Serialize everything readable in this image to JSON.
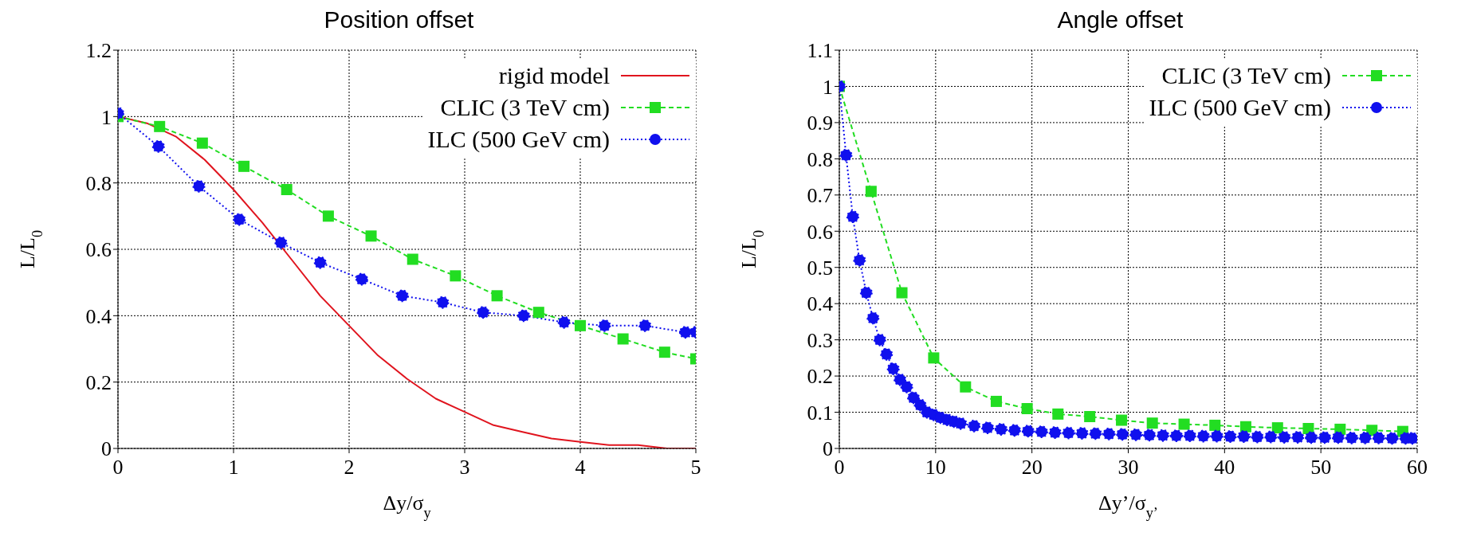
{
  "chart_data": [
    {
      "type": "line",
      "title": "Position offset",
      "xlabel": "Δy/σ$_{y}$",
      "ylabel": "L/L$_{0}$",
      "xlim": [
        0,
        5
      ],
      "xticks": [
        0,
        1,
        2,
        3,
        4,
        5
      ],
      "ylim": [
        0,
        1.2
      ],
      "yticks": [
        0,
        0.2,
        0.4,
        0.6,
        0.8,
        1,
        1.2
      ],
      "grid": true,
      "legend": "top right",
      "series": [
        {
          "name": "rigid model",
          "color": "#e0141e",
          "marker": "none",
          "line_style": "solid",
          "x": [
            0,
            0.25,
            0.5,
            0.75,
            1,
            1.25,
            1.5,
            1.75,
            2,
            2.25,
            2.5,
            2.75,
            3,
            3.25,
            3.5,
            3.75,
            4,
            4.25,
            4.5,
            4.75,
            5
          ],
          "values": [
            1,
            0.98,
            0.94,
            0.87,
            0.78,
            0.68,
            0.57,
            0.46,
            0.37,
            0.28,
            0.21,
            0.15,
            0.11,
            0.07,
            0.05,
            0.03,
            0.02,
            0.01,
            0.01,
            0,
            0
          ]
        },
        {
          "name": "CLIC (3 TeV cm)",
          "color": "#22dd22",
          "marker": "square",
          "line_style": "dashed",
          "x": [
            0,
            0.36,
            0.73,
            1.09,
            1.46,
            1.82,
            2.19,
            2.55,
            2.92,
            3.28,
            3.64,
            4.0,
            4.37,
            4.73,
            5
          ],
          "values": [
            1.0,
            0.97,
            0.92,
            0.85,
            0.78,
            0.7,
            0.64,
            0.57,
            0.52,
            0.46,
            0.41,
            0.37,
            0.33,
            0.29,
            0.27
          ]
        },
        {
          "name": "ILC (500 GeV cm)",
          "color": "#1010ee",
          "marker": "circle",
          "line_style": "dotted",
          "x": [
            0,
            0.35,
            0.7,
            1.05,
            1.41,
            1.75,
            2.11,
            2.46,
            2.81,
            3.16,
            3.51,
            3.86,
            4.21,
            4.56,
            4.91,
            5
          ],
          "values": [
            1.01,
            0.91,
            0.79,
            0.69,
            0.62,
            0.56,
            0.51,
            0.46,
            0.44,
            0.41,
            0.4,
            0.38,
            0.37,
            0.37,
            0.35,
            0.35
          ]
        }
      ]
    },
    {
      "type": "line",
      "title": "Angle offset",
      "xlabel": "Δy’/σ$_{y’}$",
      "ylabel": "L/L$_{0}$",
      "xlim": [
        0,
        60
      ],
      "xticks": [
        0,
        10,
        20,
        30,
        40,
        50,
        60
      ],
      "ylim": [
        0,
        1.1
      ],
      "yticks": [
        0,
        0.1,
        0.2,
        0.3,
        0.4,
        0.5,
        0.6,
        0.7,
        0.8,
        0.9,
        1,
        1.1
      ],
      "grid": true,
      "legend": "top right",
      "series": [
        {
          "name": "CLIC (3 TeV cm)",
          "color": "#22dd22",
          "marker": "square",
          "line_style": "dashed",
          "x": [
            0,
            3.3,
            6.5,
            9.8,
            13.1,
            16.3,
            19.5,
            22.7,
            26,
            29.3,
            32.5,
            35.8,
            39,
            42.2,
            45.5,
            48.7,
            52,
            55.3,
            58.5
          ],
          "values": [
            1.0,
            0.71,
            0.43,
            0.25,
            0.17,
            0.13,
            0.11,
            0.095,
            0.088,
            0.078,
            0.07,
            0.067,
            0.064,
            0.06,
            0.057,
            0.055,
            0.053,
            0.05,
            0.047
          ]
        },
        {
          "name": "ILC (500 GeV cm)",
          "color": "#1010ee",
          "marker": "circle",
          "line_style": "dotted",
          "x": [
            0,
            0.7,
            1.4,
            2.1,
            2.8,
            3.5,
            4.2,
            4.9,
            5.6,
            6.3,
            7,
            7.7,
            8.4,
            9.1,
            9.8,
            10.5,
            11.2,
            11.9,
            12.6,
            14,
            15.4,
            16.8,
            18.2,
            19.6,
            21,
            22.4,
            23.8,
            25.2,
            26.6,
            28,
            29.4,
            30.8,
            32.2,
            33.6,
            35,
            36.4,
            37.8,
            39.2,
            40.6,
            42,
            43.4,
            44.8,
            46.2,
            47.6,
            49,
            50.4,
            51.8,
            53.2,
            54.6,
            56,
            57.4,
            58.8,
            59.5
          ],
          "values": [
            1.0,
            0.81,
            0.64,
            0.52,
            0.43,
            0.36,
            0.3,
            0.26,
            0.22,
            0.19,
            0.17,
            0.14,
            0.12,
            0.1,
            0.093,
            0.085,
            0.079,
            0.074,
            0.069,
            0.062,
            0.057,
            0.053,
            0.05,
            0.048,
            0.046,
            0.044,
            0.043,
            0.042,
            0.041,
            0.04,
            0.039,
            0.038,
            0.037,
            0.036,
            0.035,
            0.035,
            0.034,
            0.034,
            0.033,
            0.033,
            0.032,
            0.032,
            0.031,
            0.031,
            0.03,
            0.03,
            0.03,
            0.029,
            0.029,
            0.029,
            0.028,
            0.028,
            0.028
          ]
        }
      ]
    }
  ]
}
